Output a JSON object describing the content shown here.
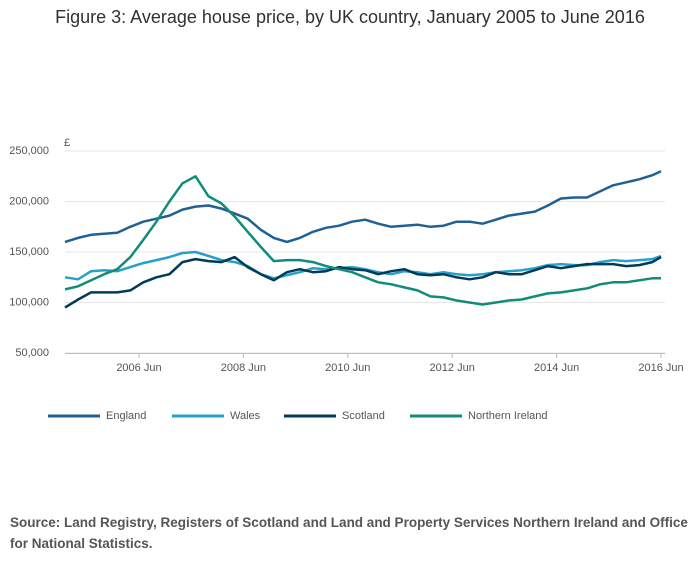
{
  "chart_data": {
    "type": "line",
    "title": "Figure 3: Average house price, by UK country, January 2005 to June 2016",
    "y_label": "£",
    "source": "Source: Land Registry, Registers of Scotland and Land and Property Services Northern Ireland and Office for National Statistics.",
    "x": [
      "2005-01",
      "2005-04",
      "2005-07",
      "2005-10",
      "2006-01",
      "2006-04",
      "2006-07",
      "2006-10",
      "2007-01",
      "2007-04",
      "2007-07",
      "2007-10",
      "2008-01",
      "2008-04",
      "2008-07",
      "2008-10",
      "2009-01",
      "2009-04",
      "2009-07",
      "2009-10",
      "2010-01",
      "2010-04",
      "2010-07",
      "2010-10",
      "2011-01",
      "2011-04",
      "2011-07",
      "2011-10",
      "2012-01",
      "2012-04",
      "2012-07",
      "2012-10",
      "2013-01",
      "2013-04",
      "2013-07",
      "2013-10",
      "2014-01",
      "2014-04",
      "2014-07",
      "2014-10",
      "2015-01",
      "2015-04",
      "2015-07",
      "2015-10",
      "2016-01",
      "2016-04",
      "2016-06"
    ],
    "xlim": [
      "2005-01",
      "2016-06"
    ],
    "xticks": [
      {
        "value": "2006-06",
        "label": "2006 Jun"
      },
      {
        "value": "2008-06",
        "label": "2008 Jun"
      },
      {
        "value": "2010-06",
        "label": "2010 Jun"
      },
      {
        "value": "2012-06",
        "label": "2012 Jun"
      },
      {
        "value": "2014-06",
        "label": "2014 Jun"
      },
      {
        "value": "2016-06",
        "label": "2016 Jun"
      }
    ],
    "ylim": [
      50000,
      250000
    ],
    "yticks": [
      {
        "value": 50000,
        "label": "50,000"
      },
      {
        "value": 100000,
        "label": "100,000"
      },
      {
        "value": 150000,
        "label": "150,000"
      },
      {
        "value": 200000,
        "label": "200,000"
      },
      {
        "value": 250000,
        "label": "250,000"
      }
    ],
    "grid": true,
    "series": [
      {
        "name": "England",
        "color": "#206095",
        "values": [
          160000,
          164000,
          167000,
          168000,
          169000,
          175000,
          180000,
          183000,
          186000,
          192000,
          195000,
          196000,
          193000,
          188000,
          183000,
          172000,
          164000,
          160000,
          164000,
          170000,
          174000,
          176000,
          180000,
          182000,
          178000,
          175000,
          176000,
          177000,
          175000,
          176000,
          180000,
          180000,
          178000,
          182000,
          186000,
          188000,
          190000,
          196000,
          203000,
          204000,
          204000,
          210000,
          216000,
          219000,
          222000,
          226000,
          230000
        ]
      },
      {
        "name": "Wales",
        "color": "#27a0cc",
        "values": [
          125000,
          123000,
          131000,
          132000,
          131000,
          135000,
          139000,
          142000,
          145000,
          149000,
          150000,
          146000,
          142000,
          140000,
          136000,
          128000,
          124000,
          127000,
          130000,
          134000,
          133000,
          134000,
          135000,
          133000,
          130000,
          128000,
          131000,
          130000,
          128000,
          130000,
          128000,
          127000,
          128000,
          130000,
          131000,
          132000,
          134000,
          137000,
          138000,
          137000,
          137000,
          140000,
          142000,
          141000,
          142000,
          143000,
          146000
        ]
      },
      {
        "name": "Scotland",
        "color": "#003c57",
        "values": [
          95000,
          103000,
          110000,
          110000,
          110000,
          112000,
          120000,
          125000,
          128000,
          140000,
          143000,
          141000,
          140000,
          145000,
          135000,
          128000,
          122000,
          130000,
          133000,
          130000,
          131000,
          135000,
          133000,
          132000,
          128000,
          131000,
          133000,
          128000,
          127000,
          128000,
          125000,
          123000,
          125000,
          130000,
          128000,
          128000,
          132000,
          136000,
          134000,
          136000,
          138000,
          138000,
          138000,
          136000,
          137000,
          140000,
          145000
        ]
      },
      {
        "name": "Northern Ireland",
        "color": "#118c7b",
        "values": [
          113000,
          116000,
          122000,
          128000,
          133000,
          145000,
          162000,
          180000,
          200000,
          218000,
          225000,
          205000,
          198000,
          185000,
          170000,
          155000,
          141000,
          142000,
          142000,
          140000,
          136000,
          133000,
          130000,
          125000,
          120000,
          118000,
          115000,
          112000,
          106000,
          105000,
          102000,
          100000,
          98000,
          100000,
          102000,
          103000,
          106000,
          109000,
          110000,
          112000,
          114000,
          118000,
          120000,
          120000,
          122000,
          124000,
          124000
        ]
      }
    ]
  }
}
